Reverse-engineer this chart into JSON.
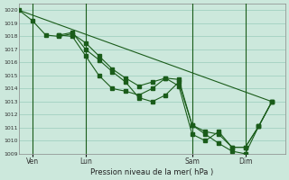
{
  "background_color": "#cce8dc",
  "plot_bg_color": "#cce8dc",
  "grid_color": "#99ccbb",
  "line_color": "#1a5c1a",
  "xlabel": "Pression niveau de la mer( hPa )",
  "ylim": [
    1009,
    1020.5
  ],
  "yticks": [
    1009,
    1010,
    1011,
    1012,
    1013,
    1014,
    1015,
    1016,
    1017,
    1018,
    1019,
    1020
  ],
  "xlim": [
    0,
    60
  ],
  "xtick_labels": [
    "Ven",
    "Lun",
    "Sam",
    "Dim"
  ],
  "xtick_positions": [
    3,
    15,
    39,
    51
  ],
  "vline_positions": [
    3,
    15,
    39,
    51
  ],
  "series1": {
    "x": [
      0,
      3,
      6,
      9,
      12,
      15,
      18,
      21,
      24,
      27,
      30,
      33,
      36,
      39,
      42,
      45,
      48,
      51,
      54,
      57
    ],
    "y": [
      1020,
      1019.2,
      1018.1,
      1018.0,
      1018.2,
      1017.5,
      1016.5,
      1015.5,
      1014.8,
      1014.2,
      1014.5,
      1014.8,
      1014.2,
      1010.5,
      1010.0,
      1010.7,
      1009.5,
      1009.5,
      1011.1,
      1013.0
    ]
  },
  "series2": {
    "x": [
      9,
      12,
      15,
      18,
      21,
      24,
      27,
      30,
      33,
      36,
      39,
      42,
      45,
      48,
      51,
      54,
      57
    ],
    "y": [
      1018.1,
      1018.3,
      1017.0,
      1016.2,
      1015.3,
      1014.5,
      1013.3,
      1013.0,
      1013.5,
      1014.5,
      1011.2,
      1010.7,
      1010.5,
      1009.5,
      1009.5,
      1011.1,
      1013.0
    ]
  },
  "series3": {
    "x": [
      9,
      12,
      15,
      18,
      21,
      24,
      27,
      30,
      33,
      36,
      39,
      42,
      45,
      48,
      51,
      54,
      57
    ],
    "y": [
      1018.1,
      1018.0,
      1016.5,
      1015.0,
      1014.0,
      1013.8,
      1013.5,
      1014.0,
      1014.8,
      1014.7,
      1011.2,
      1010.5,
      1009.8,
      1009.2,
      1009.0,
      1011.1,
      1013.0
    ]
  },
  "series_diagonal": {
    "x": [
      0,
      57
    ],
    "y": [
      1020,
      1013.0
    ]
  }
}
